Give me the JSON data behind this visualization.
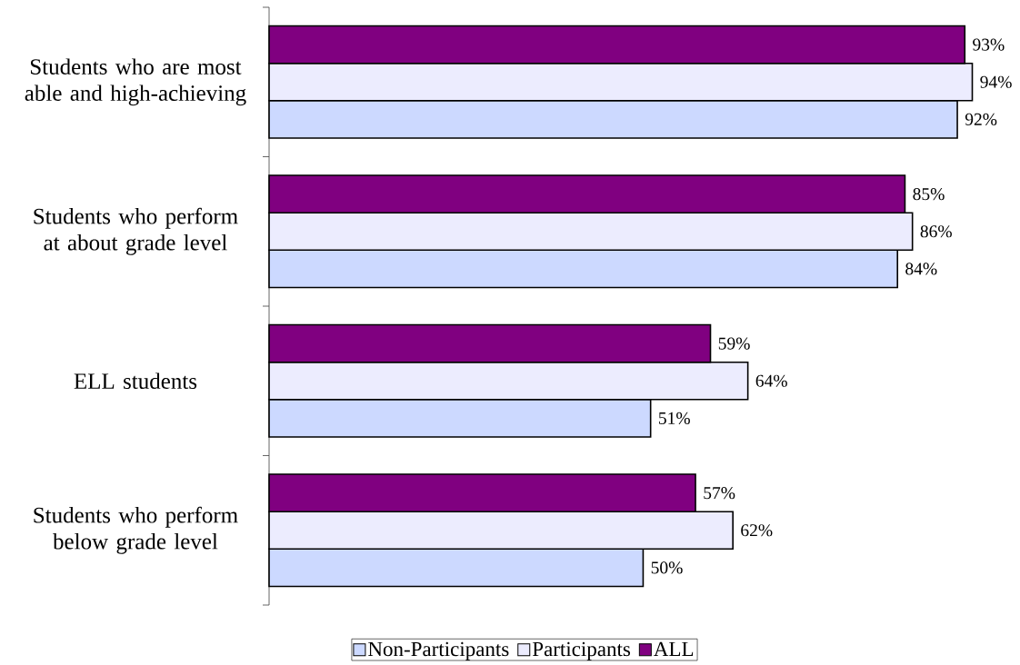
{
  "chart_data": {
    "type": "bar",
    "orientation": "horizontal",
    "categories": [
      "Students who are most able and high-achieving",
      "Students who perform at about grade level",
      "ELL students",
      "Students who perform below grade level"
    ],
    "tick_labels": "y",
    "legend": "bottom",
    "series": [
      {
        "name": "Non-Participants",
        "color": "#ccd9ff",
        "values": [
          92,
          84,
          51,
          50
        ],
        "value_labels": [
          "92%",
          "84%",
          "51%",
          "50%"
        ]
      },
      {
        "name": "Participants",
        "color": "#ececfe",
        "values": [
          94,
          86,
          64,
          62
        ],
        "value_labels": [
          "94%",
          "86%",
          "64%",
          "62%"
        ]
      },
      {
        "name": "ALL",
        "color": "#800080",
        "values": [
          93,
          85,
          59,
          57
        ],
        "value_labels": [
          "93%",
          "85%",
          "59%",
          "57%"
        ]
      }
    ]
  }
}
